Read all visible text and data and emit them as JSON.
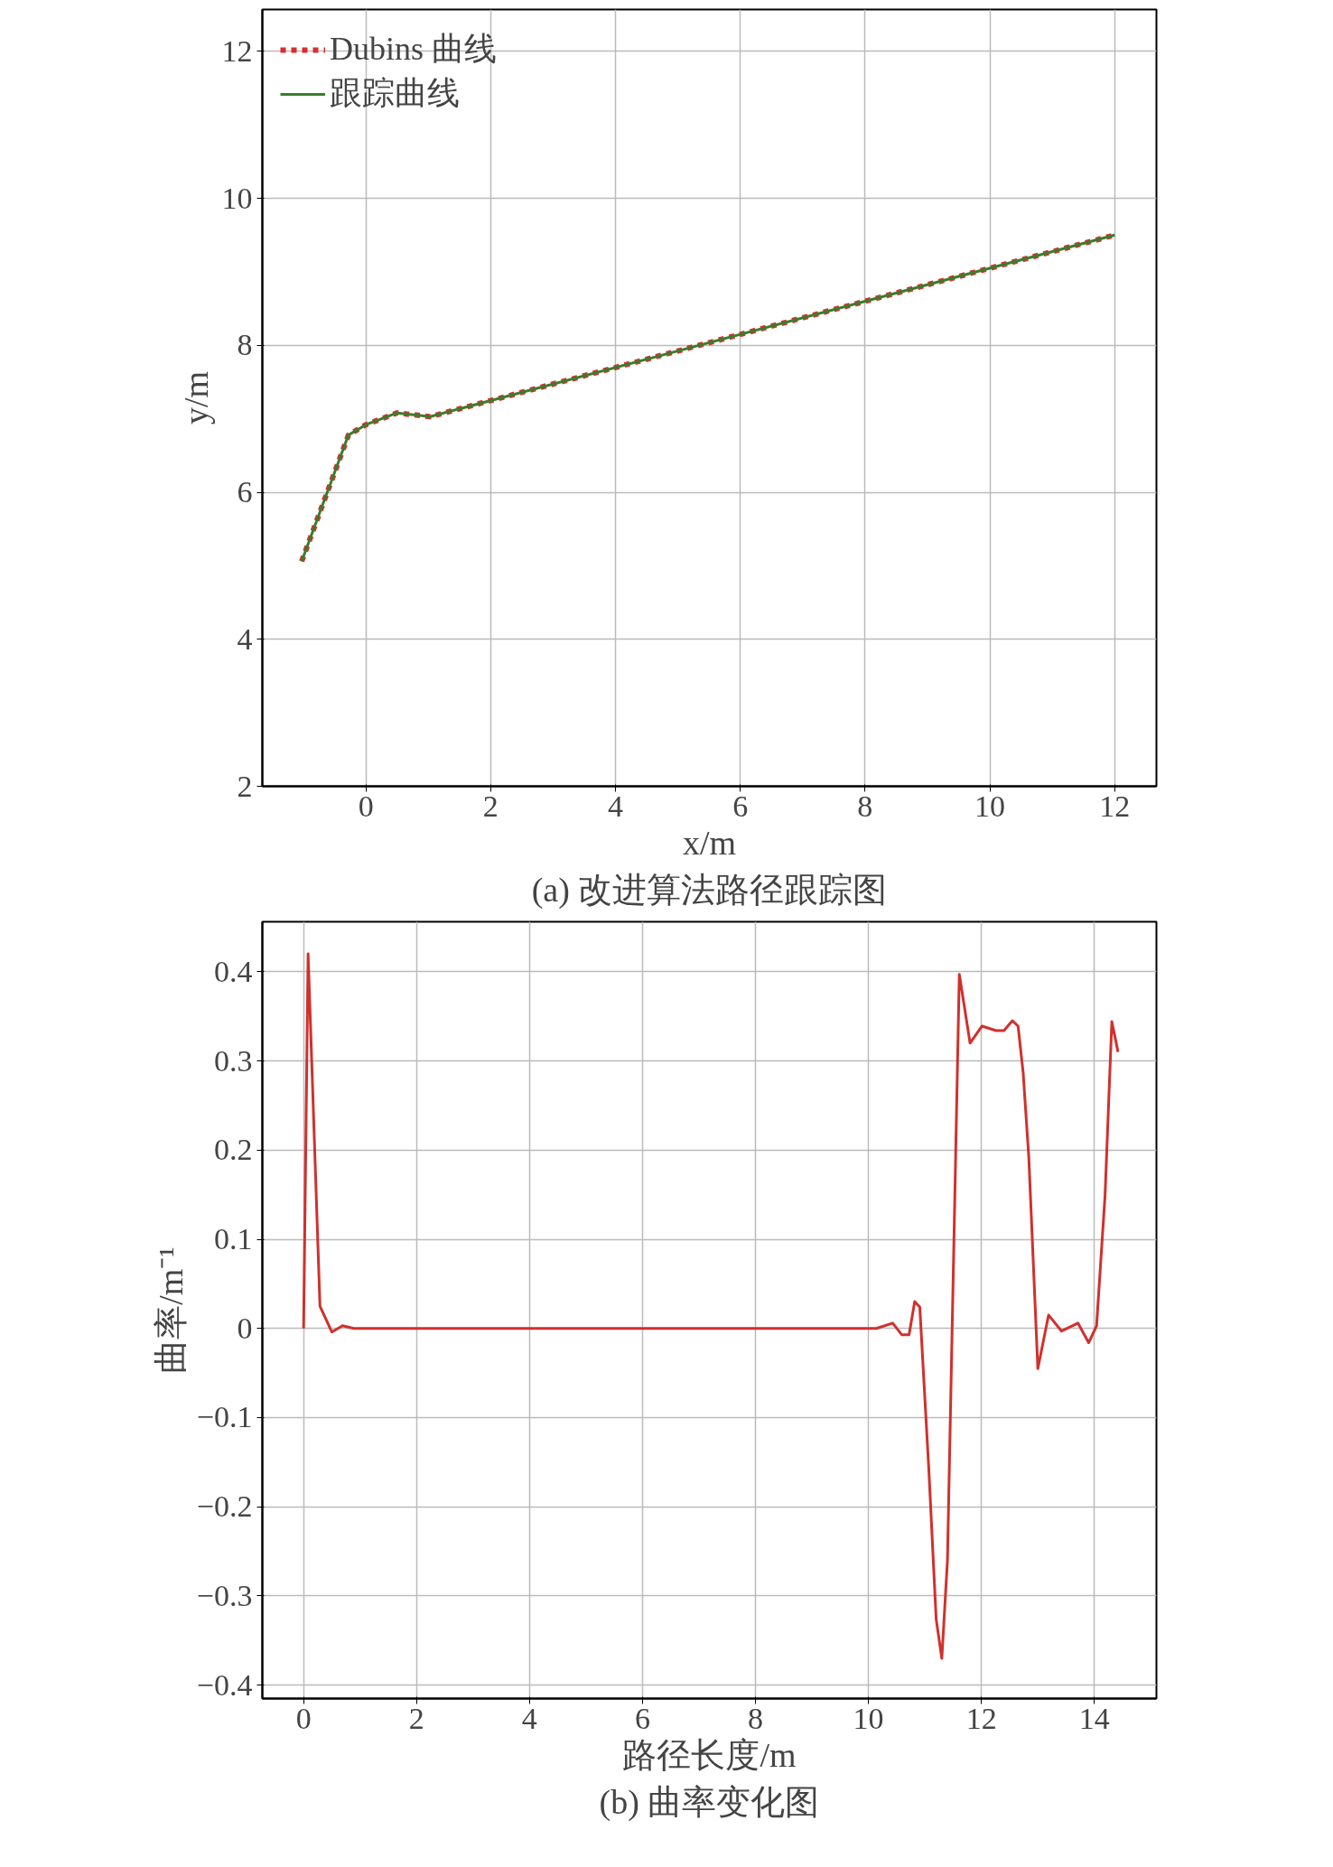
{
  "chart_data": [
    {
      "type": "line",
      "xlabel": "x/m",
      "ylabel": "y/m",
      "xlim": [
        -1.66,
        12.67
      ],
      "ylim": [
        2,
        12.57
      ],
      "xticks": [
        0,
        2,
        4,
        6,
        8,
        10,
        12
      ],
      "yticks": [
        2,
        4,
        6,
        8,
        10,
        12
      ],
      "grid": true,
      "legend": "top left",
      "annotations": [
        "(a) 改进算法路径跟踪图"
      ],
      "series": [
        {
          "name": "Dubins 曲线",
          "color": "#d62f2f",
          "line_style": "dashed",
          "x": [
            -1.03,
            -0.28,
            0,
            0.5,
            1.03,
            12
          ],
          "values": [
            5.06,
            6.78,
            6.92,
            7.08,
            7.03,
            9.5
          ]
        },
        {
          "name": "跟踪曲线",
          "color": "#3a7d2c",
          "line_style": "solid",
          "x": [
            -1.03,
            -0.28,
            0,
            0.5,
            1.03,
            12
          ],
          "values": [
            5.06,
            6.78,
            6.92,
            7.08,
            7.03,
            9.5
          ]
        }
      ]
    },
    {
      "type": "line",
      "xlabel": "路径长度/m",
      "ylabel": "曲率/m⁻¹",
      "xlim": [
        -0.73,
        15.1
      ],
      "ylim": [
        -0.415,
        0.456
      ],
      "xticks": [
        0,
        2,
        4,
        6,
        8,
        10,
        12,
        14
      ],
      "yticks": [
        {
          "value": -0.4,
          "label": "−0.4"
        },
        {
          "value": -0.3,
          "label": "−0.3"
        },
        {
          "value": -0.2,
          "label": "−0.2"
        },
        {
          "value": -0.1,
          "label": "−0.1"
        },
        0,
        0.1,
        0.2,
        0.3,
        0.4
      ],
      "grid": true,
      "annotations": [
        "(b) 曲率变化图"
      ],
      "series": [
        {
          "color": "#d0312d",
          "line_style": "solid",
          "x": [
            0,
            0.08,
            0.29,
            0.5,
            0.69,
            0.89,
            10.14,
            10.43,
            10.59,
            10.72,
            10.82,
            10.91,
            11.07,
            11.2,
            11.3,
            11.4,
            11.61,
            11.8,
            12.01,
            12.26,
            12.4,
            12.55,
            12.65,
            12.74,
            12.84,
            13.0,
            13.19,
            13.42,
            13.71,
            13.9,
            14.04,
            14.19,
            14.31,
            14.42
          ],
          "values": [
            0,
            0.42,
            0.025,
            -0.004,
            0.003,
            0,
            0,
            0.006,
            -0.007,
            -0.007,
            0.03,
            0.024,
            -0.158,
            -0.326,
            -0.37,
            -0.26,
            0.397,
            0.32,
            0.339,
            0.334,
            0.334,
            0.345,
            0.339,
            0.287,
            0.192,
            -0.045,
            0.015,
            -0.003,
            0.006,
            -0.016,
            0.003,
            0.149,
            0.344,
            0.31
          ]
        }
      ]
    }
  ]
}
